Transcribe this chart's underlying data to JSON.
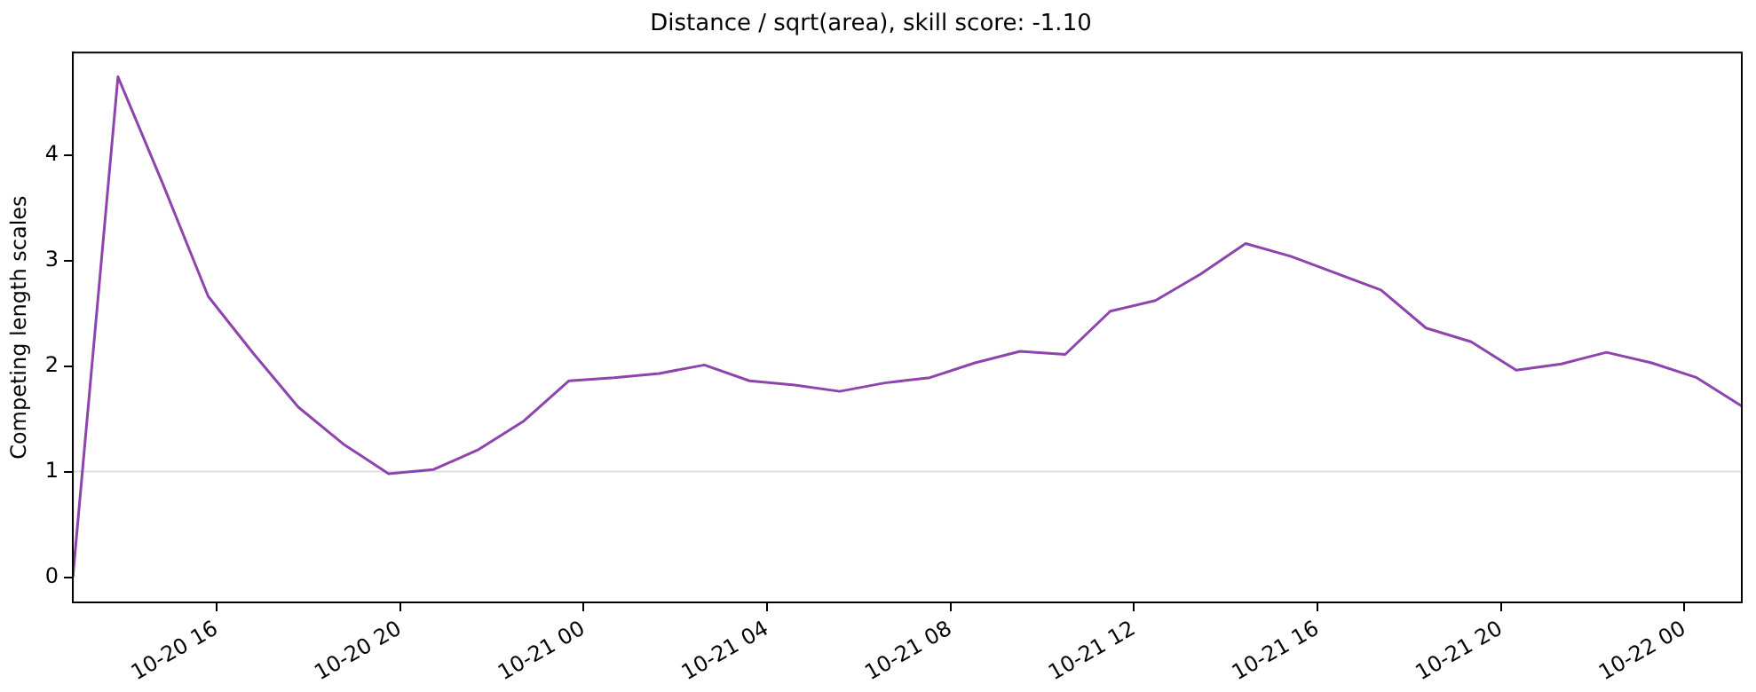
{
  "chart_data": {
    "type": "line",
    "title": "Distance / sqrt(area), skill score: -1.10",
    "ylabel": "Competing length scales",
    "x": [
      "--10-20T12:52",
      "--10-20T13:51",
      "--10-20T14:50",
      "--10-20T15:49",
      "--10-20T16:48",
      "--10-20T17:47",
      "--10-20T18:46",
      "--10-20T19:45",
      "--10-20T20:44",
      "--10-20T21:43",
      "--10-20T22:42",
      "--10-20T23:41",
      "--10-21T00:40",
      "--10-21T01:39",
      "--10-21T02:38",
      "--10-21T03:37",
      "--10-21T04:36",
      "--10-21T05:35",
      "--10-21T06:34",
      "--10-21T07:33",
      "--10-21T08:32",
      "--10-21T09:31",
      "--10-21T10:30",
      "--10-21T11:29",
      "--10-21T12:28",
      "--10-21T13:27",
      "--10-21T14:26",
      "--10-21T15:25",
      "--10-21T16:24",
      "--10-21T17:23",
      "--10-21T18:22",
      "--10-21T19:21",
      "--10-21T20:20",
      "--10-21T21:19",
      "--10-21T22:18",
      "--10-21T23:17",
      "--10-22T00:16",
      "--10-22T01:15"
    ],
    "series": [
      {
        "color": "#8e44ad",
        "values": [
          0,
          4.74,
          3.72,
          2.66,
          2.12,
          1.61,
          1.26,
          0.98,
          1.02,
          1.21,
          1.48,
          1.86,
          1.89,
          1.93,
          2.01,
          1.86,
          1.82,
          1.76,
          1.84,
          1.89,
          2.03,
          2.14,
          2.11,
          2.52,
          2.62,
          2.87,
          3.16,
          3.04,
          2.88,
          2.72,
          2.36,
          2.23,
          1.96,
          2.02,
          2.13,
          2.03,
          1.89,
          1.62
        ]
      }
    ],
    "xlim": [
      "--10-20T12:52",
      "--10-22T01:15"
    ],
    "xticks": [
      {
        "value": "--10-20T16:00",
        "label": "10-20 16"
      },
      {
        "value": "--10-20T20:00",
        "label": "10-20 20"
      },
      {
        "value": "--10-21T00:00",
        "label": "10-21 00"
      },
      {
        "value": "--10-21T04:00",
        "label": "10-21 04"
      },
      {
        "value": "--10-21T08:00",
        "label": "10-21 08"
      },
      {
        "value": "--10-21T12:00",
        "label": "10-21 12"
      },
      {
        "value": "--10-21T16:00",
        "label": "10-21 16"
      },
      {
        "value": "--10-21T20:00",
        "label": "10-21 20"
      },
      {
        "value": "--10-22T00:00",
        "label": "10-22 00"
      }
    ],
    "ylim": [
      -0.24,
      4.97
    ],
    "yticks": [
      0,
      1,
      2,
      3,
      4
    ],
    "ref_lines": [
      {
        "axis": "y",
        "value": 1,
        "color": "#dddddd"
      }
    ],
    "grid": false,
    "legend": false,
    "marker": "none",
    "line_style": "solid"
  }
}
